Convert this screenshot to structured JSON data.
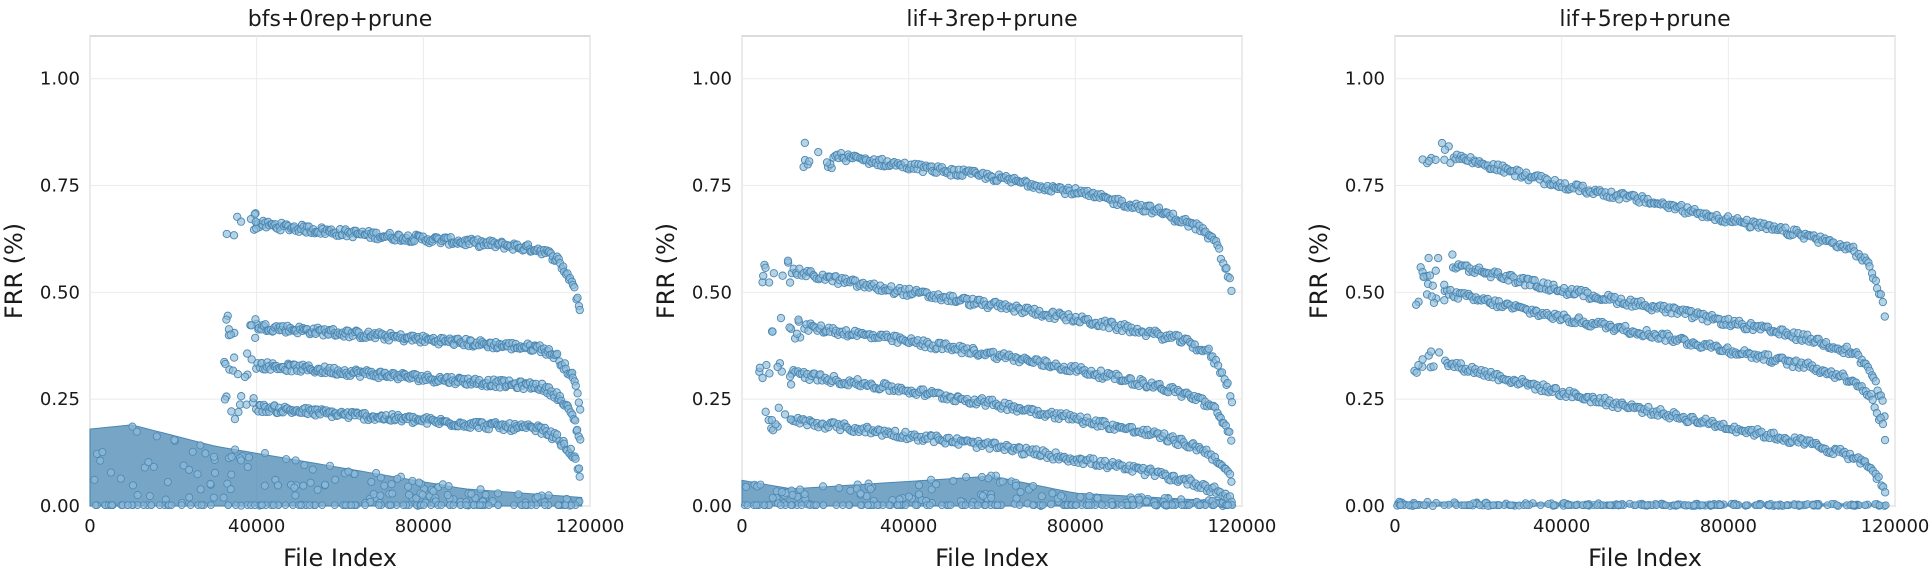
{
  "chart_data": [
    {
      "type": "scatter",
      "title": "bfs+0rep+prune",
      "xlabel": "File Index",
      "ylabel": "FRR (%)",
      "xlim": [
        0,
        120000
      ],
      "ylim": [
        0,
        1.1
      ],
      "xticks": [
        0,
        40000,
        80000,
        120000
      ],
      "yticks": [
        0.0,
        0.25,
        0.5,
        0.75,
        1.0
      ],
      "ytick_labels": [
        "0.00",
        "0.25",
        "0.50",
        "0.75",
        "1.00"
      ],
      "grid": true,
      "bands": [
        {
          "x": [
            40000,
            60000,
            80000,
            100000,
            108000,
            112000,
            116000,
            118000
          ],
          "y": [
            0.66,
            0.64,
            0.625,
            0.61,
            0.6,
            0.58,
            0.52,
            0.44
          ]
        },
        {
          "x": [
            40000,
            60000,
            80000,
            100000,
            108000,
            112000,
            116000,
            118000
          ],
          "y": [
            0.42,
            0.405,
            0.39,
            0.375,
            0.37,
            0.35,
            0.3,
            0.22
          ]
        },
        {
          "x": [
            40000,
            60000,
            80000,
            100000,
            108000,
            112000,
            116000,
            118000
          ],
          "y": [
            0.33,
            0.315,
            0.3,
            0.285,
            0.28,
            0.26,
            0.21,
            0.14
          ]
        },
        {
          "x": [
            40000,
            60000,
            80000,
            100000,
            108000,
            112000,
            116000,
            118000
          ],
          "y": [
            0.23,
            0.215,
            0.2,
            0.185,
            0.18,
            0.16,
            0.12,
            0.06
          ]
        }
      ],
      "dense_region": {
        "x": [
          0,
          10000,
          30000,
          60000,
          90000,
          118000
        ],
        "y_max": [
          0.18,
          0.19,
          0.14,
          0.09,
          0.04,
          0.02
        ]
      }
    },
    {
      "type": "scatter",
      "title": "lif+3rep+prune",
      "xlabel": "File Index",
      "ylabel": "FRR (%)",
      "xlim": [
        0,
        120000
      ],
      "ylim": [
        0,
        1.1
      ],
      "xticks": [
        0,
        40000,
        80000,
        120000
      ],
      "yticks": [
        0.0,
        0.25,
        0.5,
        0.75,
        1.0
      ],
      "ytick_labels": [
        "0.00",
        "0.25",
        "0.50",
        "0.75",
        "1.00"
      ],
      "grid": true,
      "bands": [
        {
          "x": [
            22000,
            40000,
            60000,
            80000,
            100000,
            110000,
            114000,
            117000,
            118000
          ],
          "y": [
            0.82,
            0.795,
            0.77,
            0.735,
            0.69,
            0.65,
            0.61,
            0.53,
            0.48
          ]
        },
        {
          "x": [
            12000,
            30000,
            50000,
            70000,
            90000,
            105000,
            112000,
            116000,
            118000
          ],
          "y": [
            0.55,
            0.515,
            0.485,
            0.455,
            0.42,
            0.39,
            0.36,
            0.3,
            0.23
          ]
        },
        {
          "x": [
            15000,
            40000,
            60000,
            80000,
            100000,
            110000,
            114000,
            117000,
            118000
          ],
          "y": [
            0.42,
            0.385,
            0.355,
            0.32,
            0.28,
            0.25,
            0.22,
            0.17,
            0.12
          ]
        },
        {
          "x": [
            12000,
            40000,
            60000,
            80000,
            100000,
            110000,
            114000,
            117000,
            118000
          ],
          "y": [
            0.31,
            0.27,
            0.24,
            0.205,
            0.165,
            0.135,
            0.11,
            0.07,
            0.04
          ]
        },
        {
          "x": [
            12000,
            40000,
            60000,
            80000,
            100000,
            110000,
            114000,
            117000,
            118000
          ],
          "y": [
            0.2,
            0.165,
            0.14,
            0.11,
            0.075,
            0.05,
            0.035,
            0.02,
            0.01
          ]
        }
      ],
      "dense_region": {
        "x": [
          0,
          12000,
          60000,
          80000,
          118000
        ],
        "y_max": [
          0.06,
          0.04,
          0.07,
          0.03,
          0.01
        ]
      }
    },
    {
      "type": "scatter",
      "title": "lif+5rep+prune",
      "xlabel": "File Index",
      "ylabel": "FRR (%)",
      "xlim": [
        0,
        120000
      ],
      "ylim": [
        0,
        1.1
      ],
      "xticks": [
        0,
        40000,
        80000,
        120000
      ],
      "yticks": [
        0.0,
        0.25,
        0.5,
        0.75,
        1.0
      ],
      "ytick_labels": [
        "0.00",
        "0.25",
        "0.50",
        "0.75",
        "1.00"
      ],
      "grid": true,
      "bands": [
        {
          "x": [
            14000,
            40000,
            60000,
            80000,
            100000,
            110000,
            114000,
            117000,
            118000
          ],
          "y": [
            0.82,
            0.75,
            0.715,
            0.67,
            0.63,
            0.6,
            0.56,
            0.48,
            0.4
          ]
        },
        {
          "x": [
            14000,
            40000,
            60000,
            80000,
            100000,
            110000,
            114000,
            117000,
            118000
          ],
          "y": [
            0.565,
            0.505,
            0.47,
            0.43,
            0.39,
            0.36,
            0.32,
            0.24,
            0.18
          ]
        },
        {
          "x": [
            12000,
            40000,
            60000,
            80000,
            100000,
            110000,
            114000,
            117000,
            118000
          ],
          "y": [
            0.5,
            0.44,
            0.405,
            0.365,
            0.325,
            0.295,
            0.26,
            0.19,
            0.14
          ]
        },
        {
          "x": [
            12000,
            40000,
            60000,
            80000,
            100000,
            110000,
            114000,
            117000,
            118000
          ],
          "y": [
            0.335,
            0.265,
            0.225,
            0.185,
            0.145,
            0.115,
            0.09,
            0.05,
            0.03
          ]
        }
      ],
      "dense_region": {
        "x": [
          0,
          60000,
          118000
        ],
        "y_max": [
          0.01,
          0.005,
          0.005
        ]
      }
    }
  ],
  "colors": {
    "marker_fill": "#8fbbd9",
    "marker_edge": "#4a87b3",
    "dense": "#4a87b3"
  }
}
